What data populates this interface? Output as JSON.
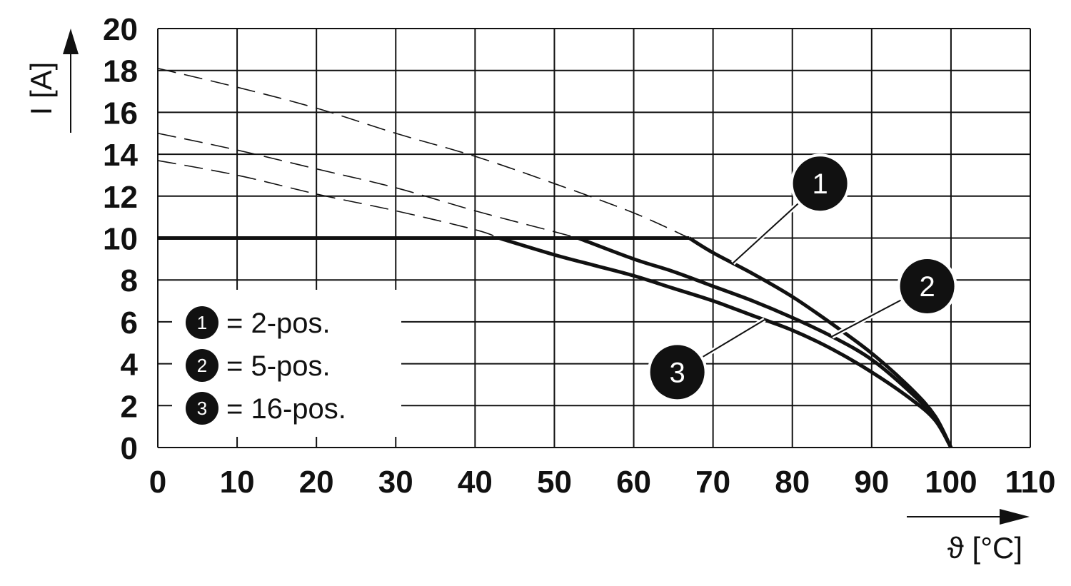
{
  "chart_data": {
    "type": "line",
    "xlabel": "ϑ [°C]",
    "ylabel": "I [A]",
    "xlim": [
      0,
      110
    ],
    "ylim": [
      0,
      20
    ],
    "x_ticks": [
      "0",
      "10",
      "20",
      "30",
      "40",
      "50",
      "60",
      "70",
      "80",
      "90",
      "100",
      "110"
    ],
    "y_ticks": [
      "0",
      "2",
      "4",
      "6",
      "8",
      "10",
      "12",
      "14",
      "16",
      "18",
      "20"
    ],
    "grid": true,
    "legend": {
      "placement": "lower-left",
      "entries": [
        {
          "marker": "1",
          "text": "= 2-pos."
        },
        {
          "marker": "2",
          "text": "= 5-pos."
        },
        {
          "marker": "3",
          "text": "= 16-pos."
        }
      ]
    },
    "series": [
      {
        "marker": "1",
        "dashed_x": [
          0,
          10,
          20,
          30,
          40,
          50,
          60,
          67
        ],
        "dashed_y": [
          18.1,
          17.2,
          16.2,
          15.0,
          13.9,
          12.6,
          11.2,
          10.0
        ],
        "x": [
          0,
          67,
          70,
          75,
          80,
          85,
          90,
          95,
          98,
          100
        ],
        "y": [
          10.0,
          10.0,
          9.3,
          8.3,
          7.2,
          5.9,
          4.5,
          2.8,
          1.5,
          0
        ]
      },
      {
        "marker": "2",
        "dashed_x": [
          0,
          10,
          20,
          30,
          40,
          50,
          53
        ],
        "dashed_y": [
          15.0,
          14.2,
          13.3,
          12.4,
          11.3,
          10.3,
          10.0
        ],
        "x": [
          0,
          53,
          60,
          65,
          70,
          75,
          80,
          85,
          90,
          95,
          98,
          100
        ],
        "y": [
          10.0,
          10.0,
          9.0,
          8.4,
          7.7,
          7.0,
          6.2,
          5.3,
          4.2,
          2.6,
          1.4,
          0
        ]
      },
      {
        "marker": "3",
        "dashed_x": [
          0,
          10,
          20,
          30,
          40,
          43
        ],
        "dashed_y": [
          13.7,
          13.0,
          12.1,
          11.3,
          10.4,
          10.0
        ],
        "x": [
          0,
          43,
          50,
          55,
          60,
          65,
          70,
          75,
          80,
          85,
          90,
          95,
          98,
          100
        ],
        "y": [
          10.0,
          10.0,
          9.2,
          8.7,
          8.2,
          7.6,
          7.0,
          6.3,
          5.6,
          4.7,
          3.6,
          2.3,
          1.3,
          0
        ]
      }
    ],
    "callouts": [
      {
        "marker": "1",
        "circle": [
          83.5,
          12.6
        ],
        "anchor": [
          72.5,
          8.8
        ]
      },
      {
        "marker": "2",
        "circle": [
          97,
          7.7
        ],
        "anchor": [
          85,
          5.3
        ]
      },
      {
        "marker": "3",
        "circle": [
          65.5,
          3.6
        ],
        "anchor": [
          76.5,
          6.1
        ]
      }
    ]
  }
}
